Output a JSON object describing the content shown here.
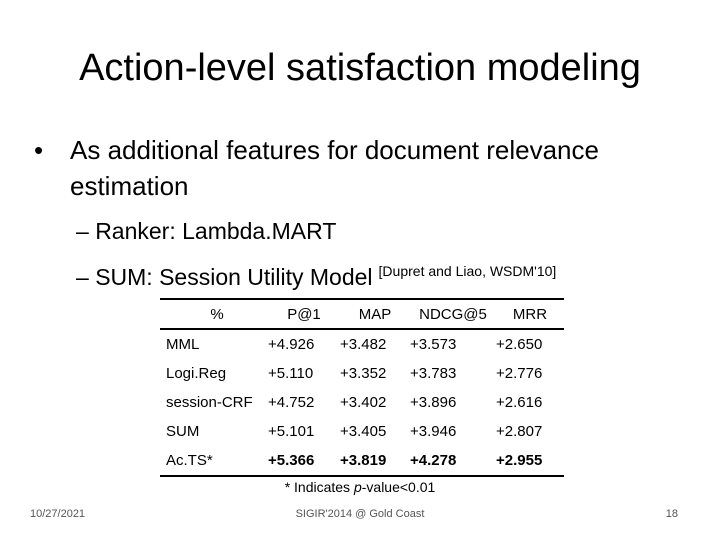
{
  "slide": {
    "title": "Action-level satisfaction modeling",
    "bullet": "As additional features for document relevance estimation",
    "bullet_marker": "•",
    "sub_marker": "–",
    "sub1": "Ranker: Lambda.MART",
    "sub2_text": "SUM: Session Utility Model",
    "sub2_cite": "[Dupret and Liao, WSDM'10]"
  },
  "table": {
    "headers": [
      "%",
      "P@1",
      "MAP",
      "NDCG@5",
      "MRR"
    ],
    "rows": [
      [
        "MML",
        "+4.926",
        "+3.482",
        "+3.573",
        "+2.650"
      ],
      [
        "Logi.Reg",
        "+5.110",
        "+3.352",
        "+3.783",
        "+2.776"
      ],
      [
        "session-CRF",
        "+4.752",
        "+3.402",
        "+3.896",
        "+2.616"
      ],
      [
        "SUM",
        "+5.101",
        "+3.405",
        "+3.946",
        "+2.807"
      ],
      [
        "Ac.TS*",
        "+5.366",
        "+3.819",
        "+4.278",
        "+2.955"
      ]
    ]
  },
  "footnote": {
    "before": "* Indicates ",
    "italic": "p",
    "after": "-value<0.01"
  },
  "footer": {
    "date": "10/27/2021",
    "venue": "SIGIR'2014 @ Gold Coast",
    "page": "18"
  }
}
